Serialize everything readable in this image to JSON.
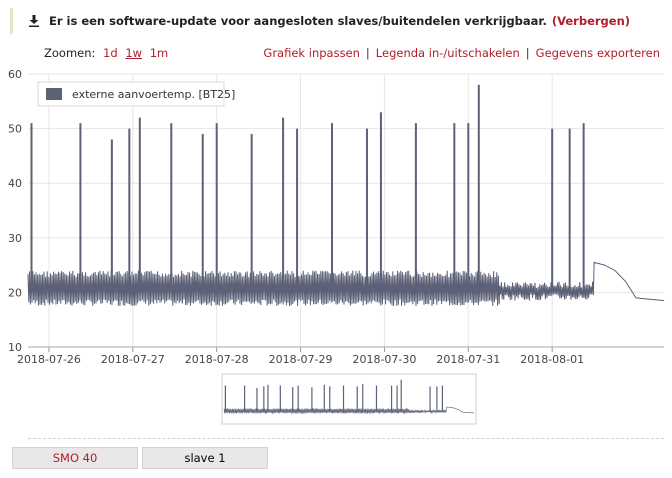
{
  "notice": {
    "text": "Er is een software-update voor aangesloten slaves/buitendelen verkrijgbaar.",
    "hide_label": "(Verbergen)",
    "icon": "download-icon"
  },
  "toolbar": {
    "zoom_label": "Zoomen:",
    "zoom_options": [
      "1d",
      "1w",
      "1m"
    ],
    "zoom_active": "1w",
    "fit_label": "Grafiek inpassen",
    "legend_toggle_label": "Legenda in-/uitschakelen",
    "export_label": "Gegevens exporteren",
    "separator": "|"
  },
  "tabs": [
    {
      "label": "SMO 40",
      "active": true
    },
    {
      "label": "slave 1",
      "active": false
    }
  ],
  "chart_data": {
    "type": "line",
    "title": "",
    "xlabel": "",
    "ylabel": "",
    "ylim": [
      10,
      60
    ],
    "yticks": [
      10,
      20,
      30,
      40,
      50,
      60
    ],
    "xlim": [
      "2018-07-25T18:00",
      "2018-08-02T08:00"
    ],
    "xticks": [
      "2018-07-26",
      "2018-07-27",
      "2018-07-28",
      "2018-07-29",
      "2018-07-30",
      "2018-07-31",
      "2018-08-01"
    ],
    "grid": true,
    "legend_position": "top-left",
    "color": "#5c6178",
    "series": [
      {
        "name": "externe aanvoertemp. [BT25]",
        "baseline_band": [
          {
            "from": "2018-07-25T18:00",
            "to": "2018-07-31T09:00",
            "low": 17.5,
            "high": 24
          },
          {
            "from": "2018-07-31T09:00",
            "to": "2018-08-01T12:00",
            "low": 18.5,
            "high": 22
          }
        ],
        "spikes": [
          {
            "x": "2018-07-25T19:00",
            "y": 51
          },
          {
            "x": "2018-07-26T09:00",
            "y": 51
          },
          {
            "x": "2018-07-26T18:00",
            "y": 48
          },
          {
            "x": "2018-07-26T23:00",
            "y": 50
          },
          {
            "x": "2018-07-27T02:00",
            "y": 52
          },
          {
            "x": "2018-07-27T11:00",
            "y": 51
          },
          {
            "x": "2018-07-27T20:00",
            "y": 49
          },
          {
            "x": "2018-07-28T00:00",
            "y": 51
          },
          {
            "x": "2018-07-28T10:00",
            "y": 49
          },
          {
            "x": "2018-07-28T19:00",
            "y": 52
          },
          {
            "x": "2018-07-28T23:00",
            "y": 50
          },
          {
            "x": "2018-07-29T09:00",
            "y": 51
          },
          {
            "x": "2018-07-29T19:00",
            "y": 50
          },
          {
            "x": "2018-07-29T23:00",
            "y": 53
          },
          {
            "x": "2018-07-30T09:00",
            "y": 51
          },
          {
            "x": "2018-07-30T20:00",
            "y": 51
          },
          {
            "x": "2018-07-31T00:00",
            "y": 51
          },
          {
            "x": "2018-07-31T03:00",
            "y": 58
          },
          {
            "x": "2018-08-01T00:00",
            "y": 50
          },
          {
            "x": "2018-08-01T05:00",
            "y": 50
          },
          {
            "x": "2018-08-01T09:00",
            "y": 51
          }
        ],
        "tail": [
          {
            "x": "2018-08-01T12:00",
            "y": 25.5
          },
          {
            "x": "2018-08-01T15:00",
            "y": 25
          },
          {
            "x": "2018-08-01T18:00",
            "y": 24
          },
          {
            "x": "2018-08-01T21:00",
            "y": 22
          },
          {
            "x": "2018-08-02T00:00",
            "y": 19
          },
          {
            "x": "2018-08-02T08:00",
            "y": 18.5
          }
        ]
      }
    ]
  }
}
